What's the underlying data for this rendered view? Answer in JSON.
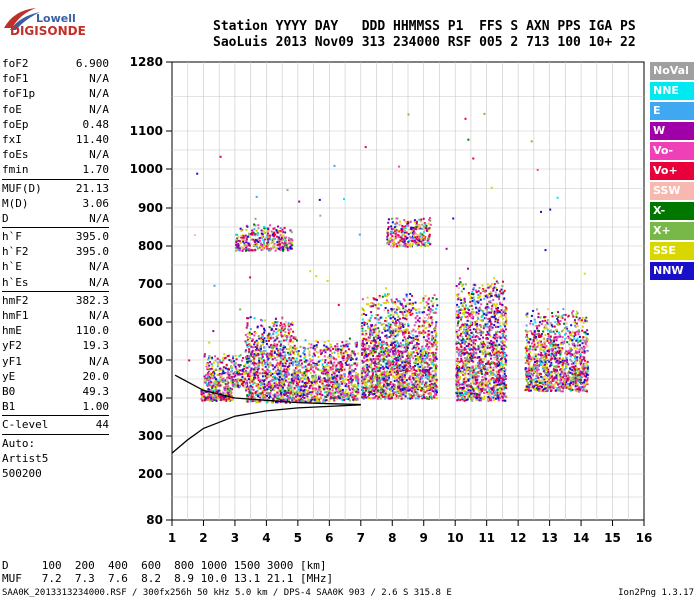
{
  "logo": {
    "line1": "Lowell",
    "line2": "DIGISONDE"
  },
  "header": {
    "row1": "Station YYYY DAY   DDD HHMMSS P1  FFS S AXN PPS IGA PS",
    "row2": "SaoLuis 2013 Nov09 313 234000 RSF 005 2 713 100 10+ 22"
  },
  "params": [
    [
      {
        "name": "foF2",
        "value": "6.900"
      },
      {
        "name": "foF1",
        "value": "N/A"
      },
      {
        "name": "foF1p",
        "value": "N/A"
      },
      {
        "name": "foE",
        "value": "N/A"
      },
      {
        "name": "foEp",
        "value": "0.48"
      },
      {
        "name": "fxI",
        "value": "11.40"
      },
      {
        "name": "foEs",
        "value": "N/A"
      },
      {
        "name": "fmin",
        "value": "1.70"
      }
    ],
    [
      {
        "name": "MUF(D)",
        "value": "21.13"
      },
      {
        "name": "M(D)",
        "value": "3.06"
      },
      {
        "name": "D",
        "value": "N/A"
      }
    ],
    [
      {
        "name": "h`F",
        "value": "395.0"
      },
      {
        "name": "h`F2",
        "value": "395.0"
      },
      {
        "name": "h`E",
        "value": "N/A"
      },
      {
        "name": "h`Es",
        "value": "N/A"
      }
    ],
    [
      {
        "name": "hmF2",
        "value": "382.3"
      },
      {
        "name": "hmF1",
        "value": "N/A"
      },
      {
        "name": "hmE",
        "value": "110.0"
      },
      {
        "name": "yF2",
        "value": "19.3"
      },
      {
        "name": "yF1",
        "value": "N/A"
      },
      {
        "name": "yE",
        "value": "20.0"
      },
      {
        "name": "B0",
        "value": "49.3"
      },
      {
        "name": "B1",
        "value": "1.00"
      }
    ],
    [
      {
        "name": "C-level",
        "value": "44"
      }
    ]
  ],
  "auto": {
    "line1": "Auto:",
    "line2": "Artist5",
    "line3": "500200"
  },
  "legend": [
    {
      "label": "NoVal",
      "color": "#a0a0a0"
    },
    {
      "label": "NNE",
      "color": "#00e8f0"
    },
    {
      "label": "E",
      "color": "#40a8f0"
    },
    {
      "label": "W",
      "color": "#a000a8"
    },
    {
      "label": "Vo-",
      "color": "#f040b8"
    },
    {
      "label": "Vo+",
      "color": "#e8003a"
    },
    {
      "label": "SSW",
      "color": "#f8b8b0"
    },
    {
      "label": "X-",
      "color": "#007800"
    },
    {
      "label": "X+",
      "color": "#78b848"
    },
    {
      "label": "SSE",
      "color": "#d8d800"
    },
    {
      "label": "NNW",
      "color": "#1810c8"
    }
  ],
  "bottom": {
    "d_row": "D     100  200  400  600  800 1000 1500 3000 [km]",
    "muf_row": "MUF   7.2  7.3  7.6  8.2  8.9 10.0 13.1 21.1 [MHz]"
  },
  "footer": {
    "info": "SAA0K_2013313234000.RSF / 300fx256h 50 kHz 5.0 km / DPS-4 SAA0K 903 / 2.6 S 315.8 E",
    "version": "Ion2Png 1.3.17"
  },
  "chart_data": {
    "type": "scatter",
    "x_axis_ticks": [
      "1",
      "2",
      "3",
      "4",
      "5",
      "6",
      "7",
      "8",
      "9",
      "10",
      "11",
      "12",
      "13",
      "14",
      "15",
      "16"
    ],
    "y_axis_ticks": [
      "80",
      "200",
      "300",
      "400",
      "500",
      "600",
      "700",
      "800",
      "900",
      "1000",
      "1100",
      "1280"
    ],
    "xlim": [
      1,
      16
    ],
    "ylim": [
      80,
      1280
    ],
    "clusters": [
      {
        "x": [
          1.9,
          2.9
        ],
        "y": [
          395,
          430
        ],
        "note": "dense"
      },
      {
        "x": [
          2.0,
          3.3
        ],
        "y": [
          430,
          520
        ]
      },
      {
        "x": [
          3.3,
          4.9
        ],
        "y": [
          390,
          620
        ]
      },
      {
        "x": [
          4.9,
          6.0
        ],
        "y": [
          390,
          560
        ]
      },
      {
        "x": [
          6.0,
          6.9
        ],
        "y": [
          395,
          560
        ]
      },
      {
        "x": [
          7.0,
          9.4
        ],
        "y": [
          400,
          680
        ]
      },
      {
        "x": [
          10.0,
          11.6
        ],
        "y": [
          395,
          720
        ]
      },
      {
        "x": [
          12.2,
          14.2
        ],
        "y": [
          420,
          640
        ]
      },
      {
        "x": [
          3.0,
          4.8
        ],
        "y": [
          790,
          860
        ]
      },
      {
        "x": [
          7.8,
          9.2
        ],
        "y": [
          800,
          880
        ]
      }
    ],
    "trace_line": {
      "x": [
        1.0,
        1.5,
        2.0,
        3.0,
        4.0,
        5.0,
        6.0,
        7.0
      ],
      "y": [
        255,
        290,
        320,
        352,
        366,
        374,
        378,
        382
      ]
    },
    "trace_upper": {
      "x": [
        1.1,
        2.0,
        3.0,
        4.0,
        5.0,
        6.0,
        7.0
      ],
      "y": [
        460,
        420,
        400,
        394,
        388,
        385,
        383
      ]
    }
  }
}
